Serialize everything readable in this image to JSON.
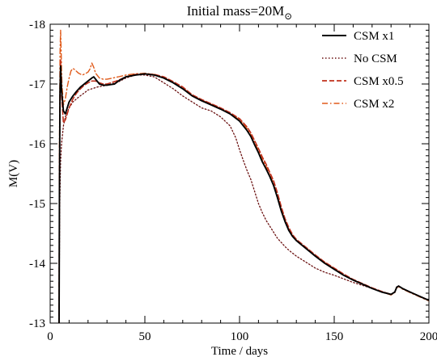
{
  "chart_data": {
    "type": "line",
    "title_main": "Initial mass=20M",
    "title_sub": "⊙",
    "xlabel": "Time / days",
    "ylabel": "M(V)",
    "xlim": [
      0,
      200
    ],
    "ylim": [
      -13,
      -18
    ],
    "y_inverted": true,
    "x_ticks": [
      0,
      50,
      100,
      150,
      200
    ],
    "y_ticks": [
      -18,
      -17,
      -16,
      -15,
      -14,
      -13
    ],
    "x_tick_labels": [
      "0",
      "50",
      "100",
      "150",
      "200"
    ],
    "y_tick_labels": [
      "-18",
      "-17",
      "-16",
      "-15",
      "-14",
      "-13"
    ],
    "legend_position": "top-right",
    "series": [
      {
        "name": "CSM x1",
        "color": "#000000",
        "dash": "solid",
        "x": [
          4.7,
          4.9,
          5.2,
          5.5,
          6,
          7,
          8,
          9,
          10,
          12,
          14,
          16,
          18,
          20,
          22,
          23,
          24,
          26,
          28,
          30,
          32,
          34,
          36,
          40,
          45,
          50,
          55,
          60,
          65,
          70,
          75,
          80,
          85,
          90,
          95,
          100,
          102,
          104,
          106,
          108,
          110,
          112,
          114,
          116,
          118,
          120,
          122,
          124,
          126,
          128,
          130,
          135,
          140,
          145,
          150,
          155,
          160,
          165,
          170,
          175,
          180,
          182,
          183,
          184,
          186,
          190,
          195,
          200
        ],
        "y": [
          -13.0,
          -15.2,
          -16.9,
          -17.3,
          -16.9,
          -16.55,
          -16.5,
          -16.6,
          -16.7,
          -16.8,
          -16.88,
          -16.95,
          -17.0,
          -17.05,
          -17.1,
          -17.12,
          -17.08,
          -17.0,
          -16.98,
          -16.98,
          -16.99,
          -17.0,
          -17.05,
          -17.12,
          -17.15,
          -17.17,
          -17.15,
          -17.1,
          -17.02,
          -16.92,
          -16.8,
          -16.72,
          -16.65,
          -16.58,
          -16.5,
          -16.38,
          -16.3,
          -16.22,
          -16.12,
          -15.98,
          -15.85,
          -15.7,
          -15.58,
          -15.45,
          -15.3,
          -15.1,
          -14.88,
          -14.7,
          -14.55,
          -14.45,
          -14.38,
          -14.25,
          -14.12,
          -14.0,
          -13.9,
          -13.8,
          -13.72,
          -13.65,
          -13.58,
          -13.52,
          -13.48,
          -13.52,
          -13.6,
          -13.62,
          -13.58,
          -13.52,
          -13.45,
          -13.38
        ]
      },
      {
        "name": "No CSM",
        "color": "#6a1010",
        "dash": "dotted",
        "x": [
          4.7,
          5,
          5.5,
          6,
          7,
          8,
          10,
          12,
          15,
          18,
          20,
          25,
          30,
          35,
          40,
          45,
          50,
          55,
          60,
          65,
          70,
          75,
          80,
          85,
          90,
          95,
          98,
          100,
          102,
          104,
          106,
          108,
          110,
          112,
          114,
          116,
          118,
          120,
          122,
          124,
          126,
          130,
          135,
          140,
          145,
          150,
          160,
          170,
          180,
          182,
          183,
          184,
          186,
          190,
          195,
          200
        ],
        "y": [
          -13.0,
          -14.9,
          -15.7,
          -16.0,
          -16.3,
          -16.45,
          -16.6,
          -16.7,
          -16.78,
          -16.85,
          -16.9,
          -16.95,
          -16.98,
          -17.02,
          -17.1,
          -17.15,
          -17.15,
          -17.12,
          -17.02,
          -16.92,
          -16.8,
          -16.7,
          -16.6,
          -16.55,
          -16.45,
          -16.3,
          -16.1,
          -15.9,
          -15.72,
          -15.55,
          -15.4,
          -15.2,
          -15.0,
          -14.85,
          -14.72,
          -14.62,
          -14.52,
          -14.42,
          -14.35,
          -14.28,
          -14.22,
          -14.12,
          -14.02,
          -13.92,
          -13.85,
          -13.8,
          -13.68,
          -13.58,
          -13.48,
          -13.52,
          -13.6,
          -13.62,
          -13.58,
          -13.52,
          -13.45,
          -13.38
        ]
      },
      {
        "name": "CSM x0.5",
        "color": "#c0301c",
        "dash": "dashed",
        "x": [
          4.7,
          4.9,
          5.2,
          5.5,
          6,
          7,
          8,
          9,
          10,
          12,
          14,
          16,
          18,
          20,
          22,
          24,
          26,
          28,
          30,
          32,
          35,
          40,
          45,
          50,
          55,
          60,
          65,
          70,
          75,
          80,
          85,
          90,
          95,
          100,
          102,
          104,
          106,
          108,
          110,
          112,
          114,
          116,
          118,
          120,
          122,
          124,
          126,
          128,
          130,
          135,
          140,
          145,
          150,
          155,
          160,
          165,
          170,
          175,
          180,
          182,
          183,
          184,
          186,
          190,
          195,
          200
        ],
        "y": [
          -13.0,
          -15.5,
          -16.8,
          -17.4,
          -16.8,
          -16.35,
          -16.4,
          -16.5,
          -16.6,
          -16.75,
          -16.85,
          -16.92,
          -16.98,
          -17.02,
          -17.05,
          -17.05,
          -17.02,
          -17.0,
          -17.0,
          -17.02,
          -17.05,
          -17.12,
          -17.16,
          -17.17,
          -17.16,
          -17.12,
          -17.04,
          -16.95,
          -16.82,
          -16.74,
          -16.67,
          -16.6,
          -16.52,
          -16.42,
          -16.35,
          -16.28,
          -16.18,
          -16.05,
          -15.92,
          -15.78,
          -15.66,
          -15.52,
          -15.38,
          -15.18,
          -14.95,
          -14.75,
          -14.6,
          -14.48,
          -14.4,
          -14.27,
          -14.14,
          -14.02,
          -13.92,
          -13.82,
          -13.73,
          -13.66,
          -13.59,
          -13.53,
          -13.48,
          -13.52,
          -13.6,
          -13.62,
          -13.58,
          -13.52,
          -13.45,
          -13.38
        ]
      },
      {
        "name": "CSM x2",
        "color": "#e05a1a",
        "dash": "dashdot",
        "x": [
          4.7,
          4.9,
          5.2,
          5.5,
          5.8,
          6.2,
          7,
          8,
          9,
          10,
          11,
          12,
          13,
          15,
          17,
          19,
          20,
          21,
          22,
          23,
          24,
          26,
          28,
          30,
          33,
          36,
          40,
          45,
          50,
          55,
          60,
          65,
          70,
          75,
          80,
          85,
          90,
          95,
          100,
          102,
          104,
          106,
          108,
          110,
          112,
          114,
          116,
          118,
          120,
          122,
          124,
          126,
          128,
          130,
          135,
          140,
          145,
          150,
          155,
          160,
          165,
          170,
          175,
          180,
          182,
          183,
          184,
          186,
          190,
          195,
          200
        ],
        "y": [
          -13.0,
          -16.0,
          -17.5,
          -17.9,
          -17.55,
          -17.0,
          -16.65,
          -16.75,
          -16.95,
          -17.1,
          -17.22,
          -17.26,
          -17.24,
          -17.18,
          -17.15,
          -17.18,
          -17.2,
          -17.25,
          -17.35,
          -17.28,
          -17.18,
          -17.1,
          -17.08,
          -17.08,
          -17.1,
          -17.12,
          -17.15,
          -17.17,
          -17.18,
          -17.16,
          -17.1,
          -17.02,
          -16.93,
          -16.81,
          -16.73,
          -16.66,
          -16.59,
          -16.51,
          -16.4,
          -16.33,
          -16.25,
          -16.15,
          -16.02,
          -15.88,
          -15.74,
          -15.62,
          -15.48,
          -15.33,
          -15.13,
          -14.91,
          -14.72,
          -14.57,
          -14.46,
          -14.39,
          -14.26,
          -14.13,
          -14.01,
          -13.91,
          -13.81,
          -13.72,
          -13.65,
          -13.58,
          -13.52,
          -13.47,
          -13.51,
          -13.59,
          -13.61,
          -13.57,
          -13.51,
          -13.44,
          -13.37
        ]
      }
    ]
  }
}
